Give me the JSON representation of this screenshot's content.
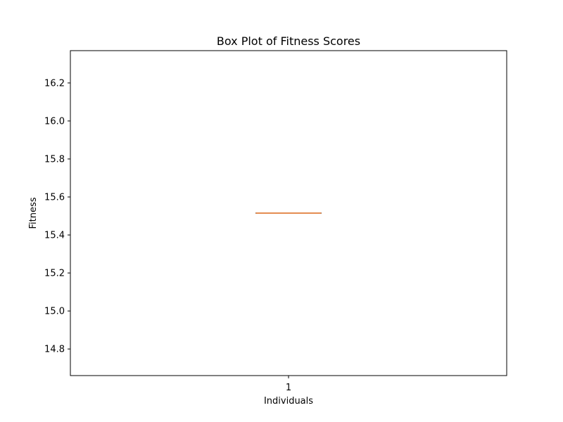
{
  "chart_data": {
    "type": "box",
    "title": "Box Plot of Fitness Scores",
    "xlabel": "Individuals",
    "ylabel": "Fitness",
    "categories": [
      "1"
    ],
    "boxes": [
      {
        "category": "1",
        "whislo": 15.515,
        "q1": 15.515,
        "median": 15.515,
        "q3": 15.515,
        "whishi": 15.515
      }
    ],
    "yticks": [
      14.8,
      15.0,
      15.2,
      15.4,
      15.6,
      15.8,
      16.0,
      16.2
    ],
    "ytick_labels": [
      "14.8",
      "15.0",
      "15.2",
      "15.4",
      "15.6",
      "15.8",
      "16.0",
      "16.2"
    ],
    "ylim": [
      14.66,
      16.37
    ],
    "grid": false,
    "colors": {
      "box": "#000000",
      "median": "#e07b39"
    }
  }
}
